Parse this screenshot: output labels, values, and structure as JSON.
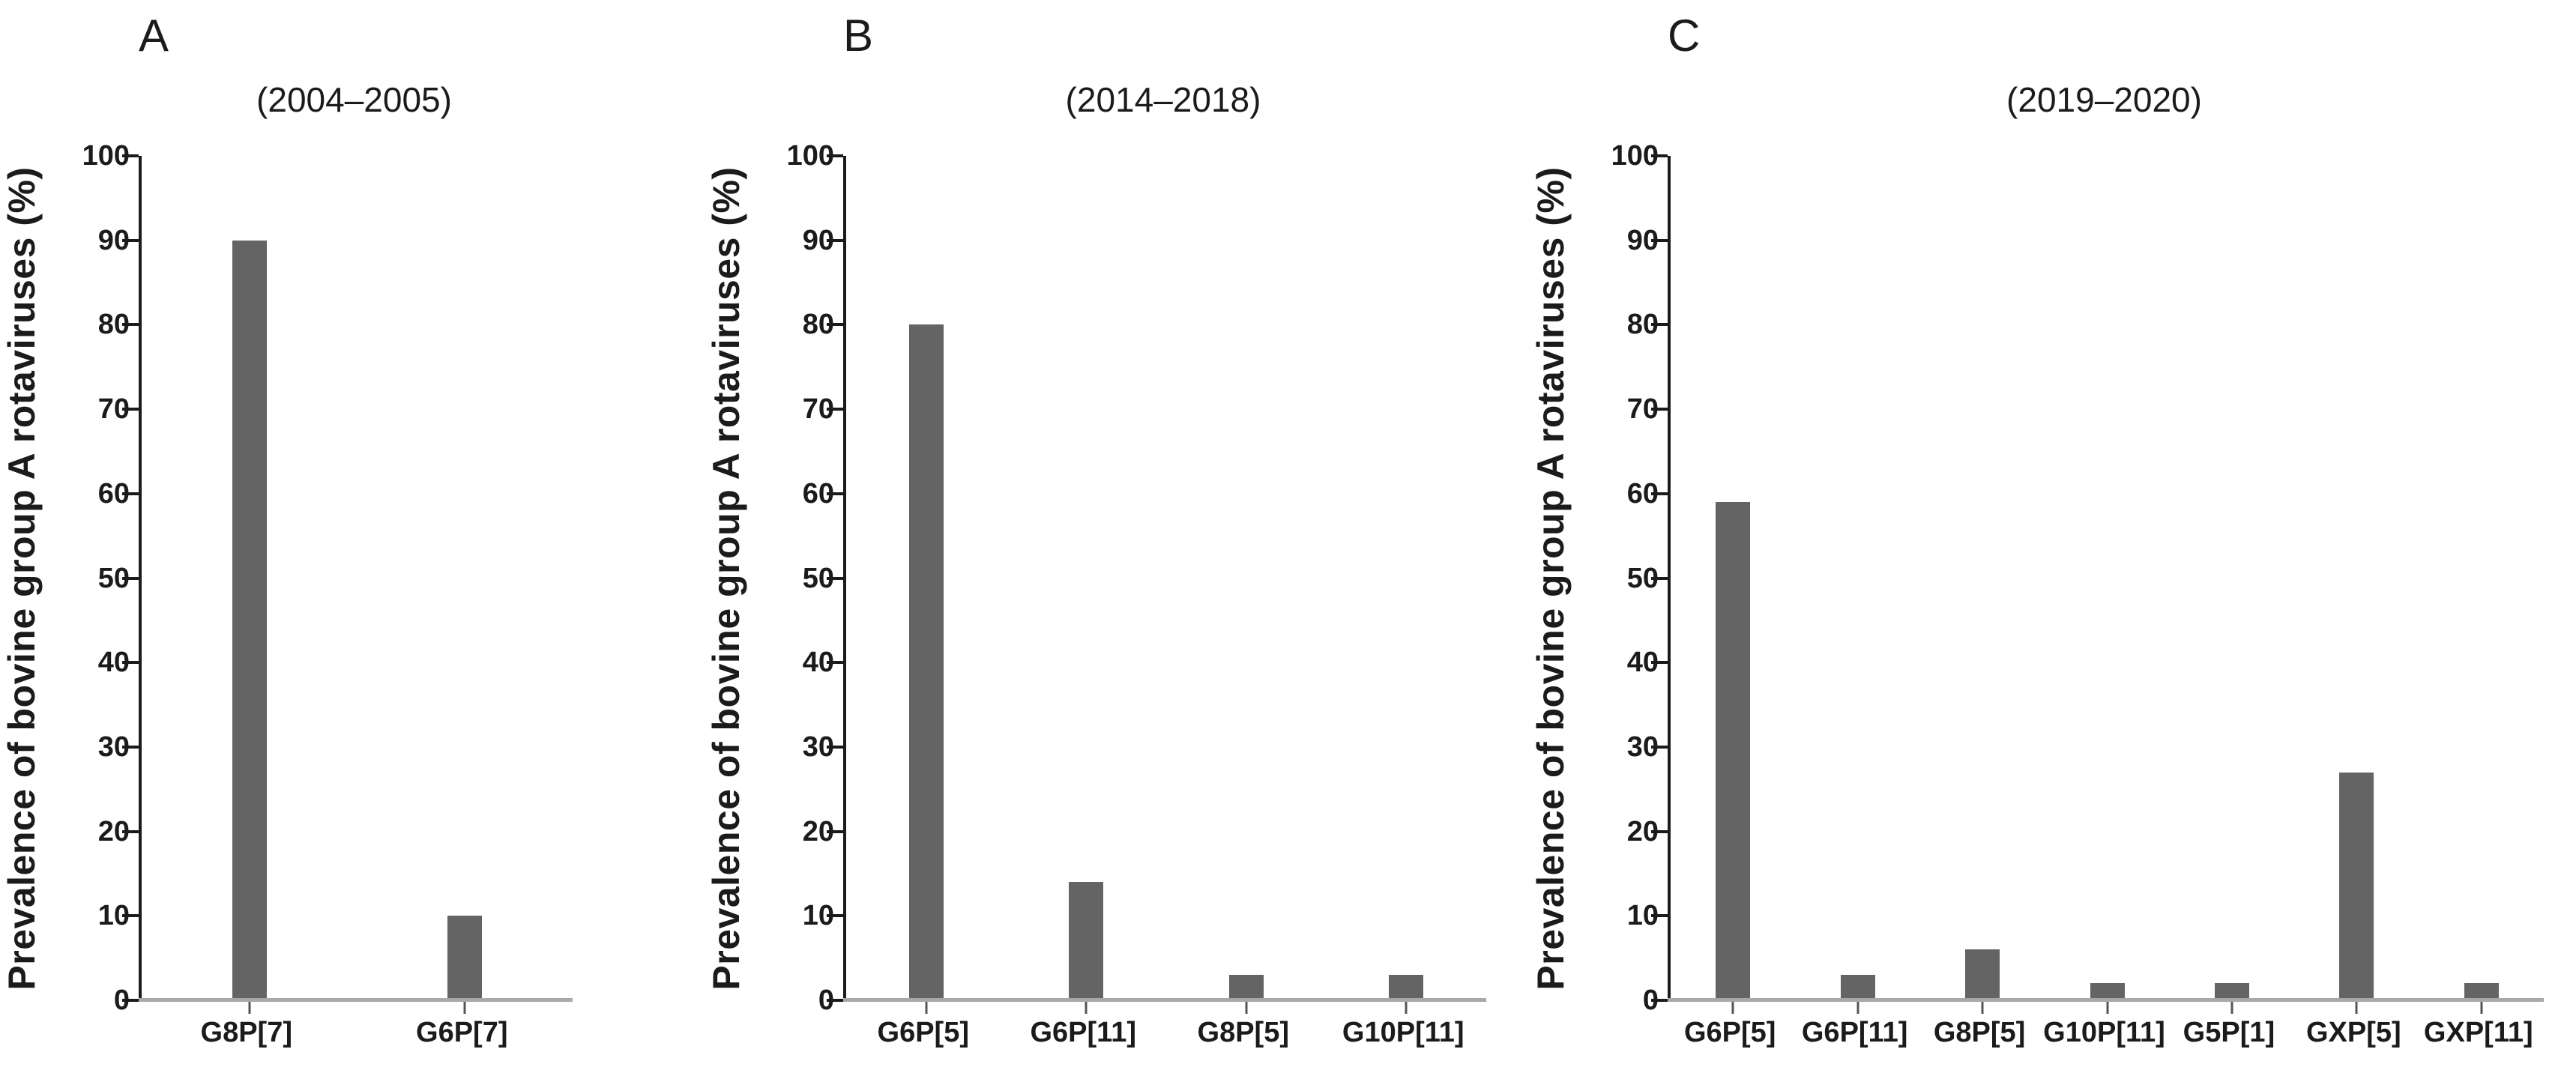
{
  "colors": {
    "bar": "#646464",
    "y_axis": "#1b1b1b",
    "x_baseline": "#a8a8a8",
    "text": "#1b1b1b",
    "background": "#ffffff"
  },
  "chart_data": [
    {
      "type": "bar",
      "panel_letter": "A",
      "title": "(2004–2005)",
      "ylabel": "Prevalence of bovine group A rotaviruses (%)",
      "xlabel": "",
      "categories": [
        "G8P[7]",
        "G6P[7]"
      ],
      "values": [
        90,
        10
      ],
      "ylim": [
        0,
        100
      ],
      "ytick_step": 10,
      "bar_color": "#646464",
      "grid": false,
      "legend": "none"
    },
    {
      "type": "bar",
      "panel_letter": "B",
      "title": "(2014–2018)",
      "ylabel": "Prevalence of bovine group A rotaviruses (%)",
      "xlabel": "",
      "categories": [
        "G6P[5]",
        "G6P[11]",
        "G8P[5]",
        "G10P[11]"
      ],
      "values": [
        80,
        14,
        3,
        3
      ],
      "ylim": [
        0,
        100
      ],
      "ytick_step": 10,
      "bar_color": "#646464",
      "grid": false,
      "legend": "none"
    },
    {
      "type": "bar",
      "panel_letter": "C",
      "title": "(2019–2020)",
      "ylabel": "Prevalence of bovine group A rotaviruses (%)",
      "xlabel": "",
      "categories": [
        "G6P[5]",
        "G6P[11]",
        "G8P[5]",
        "G10P[11]",
        "G5P[1]",
        "GXP[5]",
        "GXP[11]"
      ],
      "values": [
        59,
        3,
        6,
        2,
        2,
        27,
        2
      ],
      "ylim": [
        0,
        100
      ],
      "ytick_step": 10,
      "bar_color": "#646464",
      "grid": false,
      "legend": "none"
    }
  ]
}
